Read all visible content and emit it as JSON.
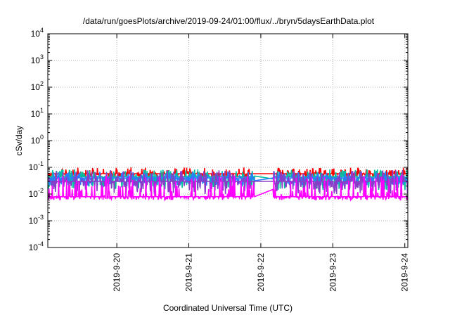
{
  "chart_data": {
    "type": "line",
    "title": "/data/run/goesPlots/archive/2019-09-24/01:00/flux/../bryn/5daysEarthData.plot",
    "xlabel": "Coordinated Universal Time (UTC)",
    "ylabel": "cSv/day",
    "yscale": "log",
    "ylim": [
      0.0001,
      10000
    ],
    "y_ticks": [
      {
        "value": 0.0001,
        "base": "10",
        "exp": "-4"
      },
      {
        "value": 0.001,
        "base": "10",
        "exp": "-3"
      },
      {
        "value": 0.01,
        "base": "10",
        "exp": "-2"
      },
      {
        "value": 0.1,
        "base": "10",
        "exp": "-1"
      },
      {
        "value": 1,
        "base": "10",
        "exp": "0"
      },
      {
        "value": 10,
        "base": "10",
        "exp": "1"
      },
      {
        "value": 100,
        "base": "10",
        "exp": "2"
      },
      {
        "value": 1000,
        "base": "10",
        "exp": "3"
      },
      {
        "value": 10000,
        "base": "10",
        "exp": "4"
      }
    ],
    "xlim": [
      "2019-09-19T01:00",
      "2019-09-24T01:00"
    ],
    "x_ticks": [
      "2019-9-20",
      "2019-9-21",
      "2019-9-22",
      "2019-9-23",
      "2019-9-24"
    ],
    "x_tick_dates": [
      "2019-09-20T00:00",
      "2019-09-21T00:00",
      "2019-09-22T00:00",
      "2019-09-23T00:00",
      "2019-09-24T00:00"
    ],
    "grid": true,
    "data_gaps": [
      [
        "2019-09-21T22:00",
        "2019-09-22T04:00"
      ]
    ],
    "series": [
      {
        "color": "#ff0000",
        "baseline": 0.058,
        "min": 0.04,
        "max": 0.1
      },
      {
        "color": "#00bfa0",
        "baseline": 0.045,
        "min": 0.014,
        "max": 0.085
      },
      {
        "color": "#2b7bff",
        "baseline": 0.04,
        "min": 0.02,
        "max": 0.07
      },
      {
        "color": "#8a3cc8",
        "baseline": 0.03,
        "min": 0.01,
        "max": 0.08
      },
      {
        "color": "#ff00ff",
        "baseline": 0.008,
        "min": 0.006,
        "max": 0.05
      }
    ]
  }
}
